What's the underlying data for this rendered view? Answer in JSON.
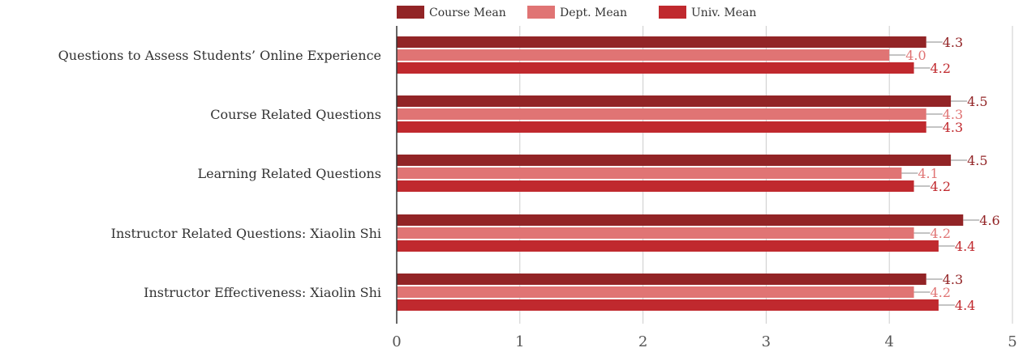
{
  "chart_data": {
    "type": "bar",
    "orientation": "horizontal",
    "categories": [
      "Questions to Assess Students’ Online Experience",
      "Course Related Questions",
      "Learning Related Questions",
      "Instructor Related Questions: Xiaolin Shi",
      "Instructor Effectiveness: Xiaolin Shi"
    ],
    "series": [
      {
        "name": "Course Mean",
        "color": "#922426",
        "values": [
          4.3,
          4.5,
          4.5,
          4.6,
          4.3
        ],
        "labels": [
          "4.3",
          "4.5",
          "4.5",
          "4.6",
          "4.3"
        ]
      },
      {
        "name": "Dept. Mean",
        "color": "#e07474",
        "values": [
          4.0,
          4.3,
          4.1,
          4.2,
          4.2
        ],
        "labels": [
          "4.0",
          "4.3",
          "4.1",
          "4.2",
          "4.2"
        ]
      },
      {
        "name": "Univ. Mean",
        "color": "#c0292e",
        "values": [
          4.2,
          4.3,
          4.2,
          4.4,
          4.4
        ],
        "labels": [
          "4.2",
          "4.3",
          "4.2",
          "4.4",
          "4.4"
        ]
      }
    ],
    "xlim": [
      0,
      5
    ],
    "ticks": [
      "0",
      "1",
      "2",
      "3",
      "4",
      "5"
    ],
    "grid": true,
    "legend": "top",
    "title": "",
    "xlabel": "",
    "ylabel": ""
  }
}
